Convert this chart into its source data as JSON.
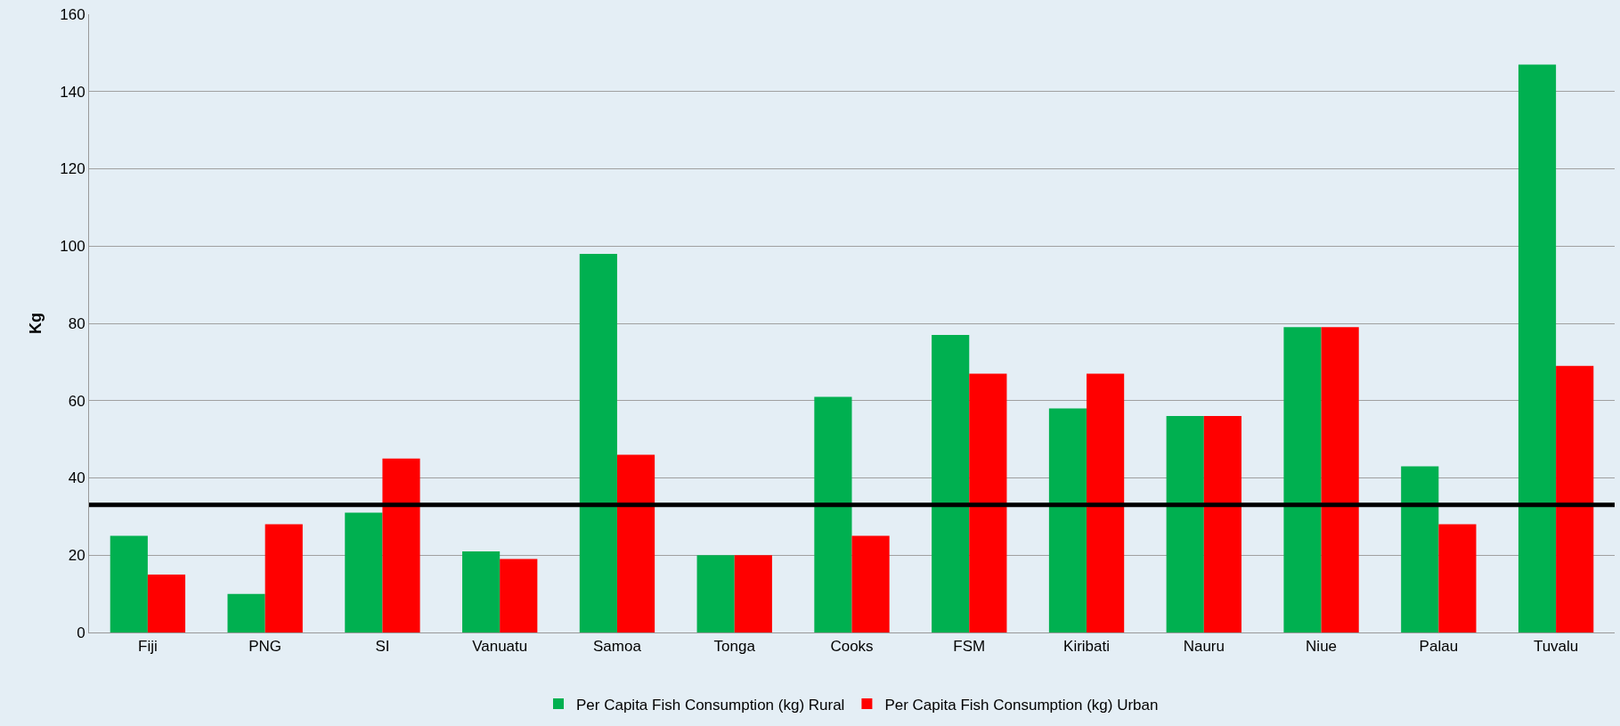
{
  "chart_data": {
    "type": "bar",
    "ylabel": "Kg",
    "categories": [
      "Fiji",
      "PNG",
      "SI",
      "Vanuatu",
      "Samoa",
      "Tonga",
      "Cooks",
      "FSM",
      "Kiribati",
      "Nauru",
      "Niue",
      "Palau",
      "Tuvalu"
    ],
    "series": [
      {
        "name": "Per Capita Fish Consumption (kg) Rural",
        "color": "#00b050",
        "values": [
          25,
          10,
          31,
          21,
          98,
          20,
          61,
          77,
          58,
          56,
          79,
          43,
          147
        ]
      },
      {
        "name": "Per Capita Fish Consumption (kg) Urban",
        "color": "#ff0000",
        "values": [
          15,
          28,
          45,
          19,
          46,
          20,
          25,
          67,
          67,
          56,
          79,
          28,
          69
        ]
      }
    ],
    "ylim": [
      0,
      160
    ],
    "yticks": [
      0,
      20,
      40,
      60,
      80,
      100,
      120,
      140,
      160
    ],
    "grid": "y",
    "legend": "bottom",
    "ref_lines": [
      {
        "axis": "y",
        "value": 33,
        "color": "#000000"
      }
    ]
  }
}
